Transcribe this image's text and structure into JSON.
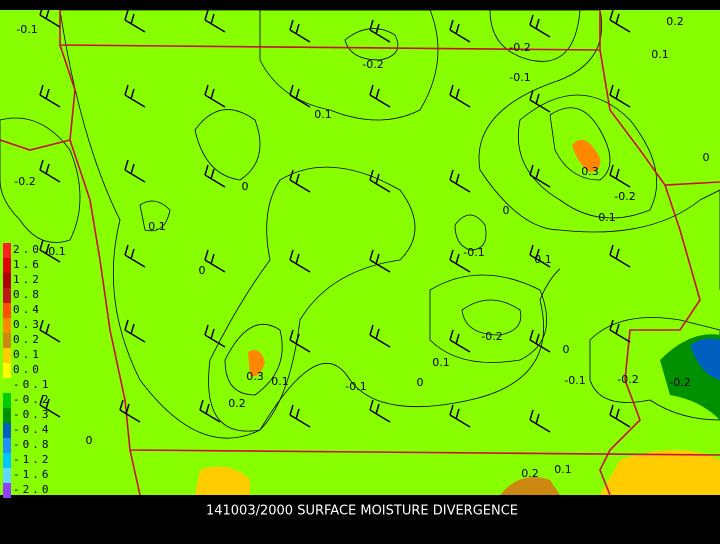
{
  "map": {
    "caption": "141003/2000 SURFACE MOISTURE DIVERGENCE",
    "legend": [
      {
        "label": "2.0",
        "color": "#ff2020"
      },
      {
        "label": "1.6",
        "color": "#e00000"
      },
      {
        "label": "1.2",
        "color": "#b00000"
      },
      {
        "label": "0.8",
        "color": "#c01818"
      },
      {
        "label": "0.4",
        "color": "#ff5000"
      },
      {
        "label": "0.3",
        "color": "#ff8800"
      },
      {
        "label": "0.2",
        "color": "#cc8810"
      },
      {
        "label": "0.1",
        "color": "#ffcc00"
      },
      {
        "label": "0.0",
        "color": "#ffff00"
      },
      {
        "label": "-0.1",
        "color": "#88ff00"
      },
      {
        "label": "-0.2",
        "color": "#00cc00"
      },
      {
        "label": "-0.3",
        "color": "#009000"
      },
      {
        "label": "-0.4",
        "color": "#0060c0"
      },
      {
        "label": "-0.8",
        "color": "#2090ff"
      },
      {
        "label": "-1.2",
        "color": "#00c8ff"
      },
      {
        "label": "-1.6",
        "color": "#60d8ff"
      },
      {
        "label": "-2.0",
        "color": "#9040ff"
      }
    ],
    "contour_labels": [
      "-0.1",
      "-0.2",
      "-0.2",
      "-0.1",
      "0.2",
      "0.1",
      "0.1",
      "-0.2",
      "0",
      "0.3",
      "-0.2",
      "0.1",
      "0",
      "0.1",
      "0",
      "-0.1",
      "0",
      "-0.1",
      "0.1",
      "-0.2",
      "0",
      "0.1",
      "0",
      "0.3",
      "0.1",
      "-0.1",
      "-0.1",
      "-0.2",
      "-0.2",
      "0.2",
      "0",
      "0.2",
      "0.1"
    ]
  }
}
